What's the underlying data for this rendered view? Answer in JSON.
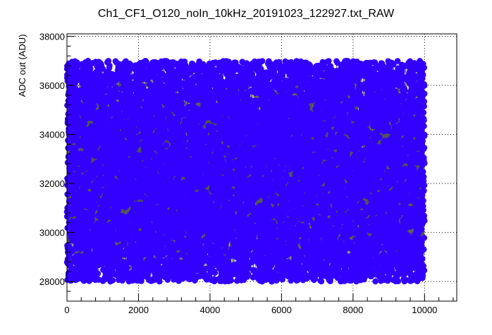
{
  "chart_data": {
    "type": "scatter",
    "title": "Ch1_CF1_O120_noIn_10kHz_20191023_122927.txt_RAW",
    "xlabel": "",
    "ylabel": "ADC out (ADU)",
    "xlim": [
      0,
      10900
    ],
    "ylim": [
      27200,
      38100
    ],
    "x_ticks": [
      0,
      2000,
      4000,
      6000,
      8000,
      10000
    ],
    "x_tick_labels": [
      "0",
      "2000",
      "4000",
      "6000",
      "8000",
      "10000"
    ],
    "y_ticks": [
      28000,
      30000,
      32000,
      34000,
      36000,
      38000
    ],
    "y_tick_labels": [
      "28000",
      "30000",
      "32000",
      "34000",
      "36000",
      "38000"
    ],
    "grid": true,
    "grid_style": "dotted",
    "marker_color": "#3300ff",
    "line_color": "#555555",
    "series": [
      {
        "x_range": [
          0,
          10000
        ],
        "y_range": [
          28000,
          37000
        ],
        "n_points": 10000,
        "distribution": "uniform"
      }
    ]
  }
}
